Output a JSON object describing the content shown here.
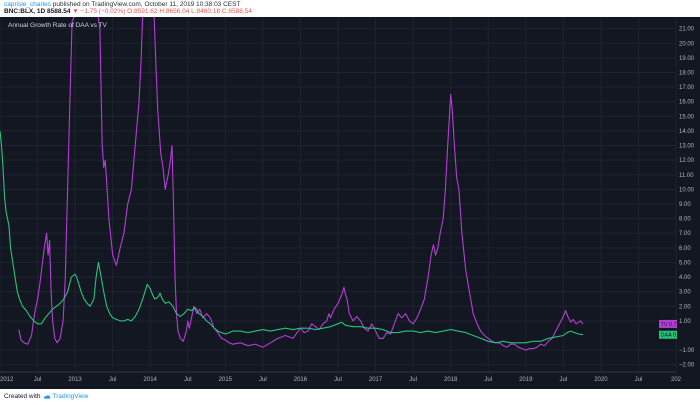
{
  "header": {
    "username": "caprisle_charles",
    "published_text": "published on TradingView.com, October 11, 2019 10:38:03 CEST",
    "symbol": "BNC:BLX, 1D",
    "price": "8588.54",
    "change": "▼ −1.75 (−0.02%)",
    "ohlc": "O:8591.62 H:8656.04 L:8460.18 C:8588.54"
  },
  "footer": {
    "created_with": "Created with",
    "brand": "TradingView"
  },
  "chart_data": {
    "type": "line",
    "title": "Annual Growth Rate of DAA vs TV",
    "x_axis": {
      "labels": [
        "2012",
        "Jul",
        "2013",
        "Jul",
        "2014",
        "Jul",
        "2015",
        "Jul",
        "2016",
        "Jul",
        "2017",
        "Jul",
        "2018",
        "Jul",
        "2019",
        "Jul",
        "2020",
        "Jul",
        "202"
      ],
      "range": [
        2012.0,
        2021.0
      ]
    },
    "y_axis": {
      "ticks": [
        "21.00",
        "20.00",
        "19.00",
        "18.00",
        "17.00",
        "16.00",
        "15.00",
        "14.00",
        "13.00",
        "12.00",
        "11.00",
        "10.00",
        "9.00",
        "8.00",
        "7.00",
        "6.00",
        "5.00",
        "4.00",
        "3.00",
        "2.00",
        "1.00",
        "−1.00",
        "−2.00"
      ],
      "range": [
        -2.5,
        21.8
      ]
    },
    "grid": true,
    "series": [
      {
        "name": "TV",
        "color": "#b53ed6",
        "last_value": "0.79",
        "points": [
          [
            2012.25,
            0.4
          ],
          [
            2012.28,
            -0.3
          ],
          [
            2012.32,
            -0.5
          ],
          [
            2012.37,
            -0.6
          ],
          [
            2012.42,
            0.0
          ],
          [
            2012.46,
            1.5
          ],
          [
            2012.5,
            2.5
          ],
          [
            2012.53,
            3.5
          ],
          [
            2012.56,
            4.8
          ],
          [
            2012.59,
            6.0
          ],
          [
            2012.62,
            7.0
          ],
          [
            2012.64,
            5.5
          ],
          [
            2012.66,
            6.5
          ],
          [
            2012.68,
            3.0
          ],
          [
            2012.7,
            1.0
          ],
          [
            2012.73,
            -0.2
          ],
          [
            2012.76,
            -0.5
          ],
          [
            2012.8,
            -0.2
          ],
          [
            2012.84,
            1.0
          ],
          [
            2012.87,
            4.0
          ],
          [
            2012.9,
            10.0
          ],
          [
            2012.93,
            16.0
          ],
          [
            2012.96,
            21.5
          ],
          [
            2013.0,
            22.0
          ],
          [
            2013.3,
            22.0
          ],
          [
            2013.33,
            21.0
          ],
          [
            2013.36,
            13.0
          ],
          [
            2013.38,
            11.5
          ],
          [
            2013.4,
            12.0
          ],
          [
            2013.42,
            10.5
          ],
          [
            2013.45,
            8.0
          ],
          [
            2013.5,
            5.5
          ],
          [
            2013.55,
            4.8
          ],
          [
            2013.6,
            6.0
          ],
          [
            2013.65,
            7.0
          ],
          [
            2013.7,
            9.0
          ],
          [
            2013.75,
            10.0
          ],
          [
            2013.8,
            13.0
          ],
          [
            2013.85,
            16.0
          ],
          [
            2013.88,
            19.0
          ],
          [
            2013.9,
            22.0
          ],
          [
            2014.05,
            22.0
          ],
          [
            2014.08,
            18.0
          ],
          [
            2014.1,
            15.5
          ],
          [
            2014.14,
            12.5
          ],
          [
            2014.17,
            11.5
          ],
          [
            2014.2,
            10.0
          ],
          [
            2014.24,
            11.0
          ],
          [
            2014.27,
            12.0
          ],
          [
            2014.29,
            13.0
          ],
          [
            2014.31,
            9.0
          ],
          [
            2014.33,
            4.0
          ],
          [
            2014.35,
            1.5
          ],
          [
            2014.37,
            0.3
          ],
          [
            2014.4,
            -0.2
          ],
          [
            2014.44,
            -0.4
          ],
          [
            2014.48,
            0.3
          ],
          [
            2014.5,
            1.0
          ],
          [
            2014.52,
            0.5
          ],
          [
            2014.55,
            1.2
          ],
          [
            2014.58,
            2.0
          ],
          [
            2014.62,
            1.5
          ],
          [
            2014.66,
            1.8
          ],
          [
            2014.7,
            1.2
          ],
          [
            2014.75,
            1.5
          ],
          [
            2014.8,
            1.2
          ],
          [
            2014.85,
            0.5
          ],
          [
            2014.9,
            0.2
          ],
          [
            2014.95,
            -0.2
          ],
          [
            2015.0,
            -0.3
          ],
          [
            2015.05,
            -0.5
          ],
          [
            2015.1,
            -0.6
          ],
          [
            2015.2,
            -0.5
          ],
          [
            2015.3,
            -0.7
          ],
          [
            2015.4,
            -0.6
          ],
          [
            2015.5,
            -0.8
          ],
          [
            2015.6,
            -0.5
          ],
          [
            2015.7,
            -0.2
          ],
          [
            2015.8,
            0.0
          ],
          [
            2015.9,
            -0.2
          ],
          [
            2016.0,
            0.5
          ],
          [
            2016.05,
            0.2
          ],
          [
            2016.1,
            0.3
          ],
          [
            2016.15,
            0.8
          ],
          [
            2016.2,
            0.6
          ],
          [
            2016.25,
            0.4
          ],
          [
            2016.3,
            0.8
          ],
          [
            2016.35,
            1.0
          ],
          [
            2016.38,
            1.5
          ],
          [
            2016.4,
            1.2
          ],
          [
            2016.45,
            1.8
          ],
          [
            2016.5,
            2.2
          ],
          [
            2016.55,
            2.8
          ],
          [
            2016.58,
            3.3
          ],
          [
            2016.6,
            2.8
          ],
          [
            2016.62,
            2.5
          ],
          [
            2016.65,
            1.5
          ],
          [
            2016.7,
            1.0
          ],
          [
            2016.75,
            1.3
          ],
          [
            2016.8,
            1.0
          ],
          [
            2016.85,
            0.5
          ],
          [
            2016.9,
            0.3
          ],
          [
            2016.95,
            0.8
          ],
          [
            2017.0,
            0.3
          ],
          [
            2017.05,
            -0.2
          ],
          [
            2017.1,
            -0.2
          ],
          [
            2017.15,
            0.2
          ],
          [
            2017.2,
            0.1
          ],
          [
            2017.25,
            0.8
          ],
          [
            2017.3,
            1.5
          ],
          [
            2017.35,
            1.2
          ],
          [
            2017.4,
            1.5
          ],
          [
            2017.45,
            1.0
          ],
          [
            2017.5,
            0.8
          ],
          [
            2017.55,
            1.2
          ],
          [
            2017.6,
            1.8
          ],
          [
            2017.65,
            2.5
          ],
          [
            2017.7,
            4.0
          ],
          [
            2017.74,
            5.5
          ],
          [
            2017.77,
            6.2
          ],
          [
            2017.8,
            5.5
          ],
          [
            2017.83,
            6.0
          ],
          [
            2017.86,
            7.0
          ],
          [
            2017.9,
            8.0
          ],
          [
            2017.93,
            10.0
          ],
          [
            2017.96,
            13.0
          ],
          [
            2018.0,
            16.5
          ],
          [
            2018.02,
            15.5
          ],
          [
            2018.05,
            13.0
          ],
          [
            2018.08,
            10.8
          ],
          [
            2018.11,
            10.0
          ],
          [
            2018.15,
            7.0
          ],
          [
            2018.2,
            4.5
          ],
          [
            2018.25,
            3.0
          ],
          [
            2018.3,
            1.5
          ],
          [
            2018.35,
            0.8
          ],
          [
            2018.4,
            0.3
          ],
          [
            2018.45,
            0.0
          ],
          [
            2018.5,
            -0.2
          ],
          [
            2018.55,
            -0.4
          ],
          [
            2018.6,
            -0.5
          ],
          [
            2018.65,
            -0.5
          ],
          [
            2018.7,
            -0.7
          ],
          [
            2018.75,
            -0.8
          ],
          [
            2018.8,
            -0.6
          ],
          [
            2018.85,
            -0.6
          ],
          [
            2018.9,
            -0.8
          ],
          [
            2018.95,
            -0.9
          ],
          [
            2019.0,
            -1.0
          ],
          [
            2019.05,
            -0.9
          ],
          [
            2019.1,
            -0.9
          ],
          [
            2019.15,
            -0.8
          ],
          [
            2019.2,
            -0.6
          ],
          [
            2019.25,
            -0.7
          ],
          [
            2019.3,
            -0.4
          ],
          [
            2019.35,
            -0.2
          ],
          [
            2019.4,
            0.3
          ],
          [
            2019.45,
            0.8
          ],
          [
            2019.5,
            1.3
          ],
          [
            2019.53,
            1.7
          ],
          [
            2019.56,
            1.3
          ],
          [
            2019.6,
            0.9
          ],
          [
            2019.63,
            1.1
          ],
          [
            2019.67,
            0.8
          ],
          [
            2019.7,
            0.9
          ],
          [
            2019.73,
            1.0
          ],
          [
            2019.76,
            0.79
          ]
        ]
      },
      {
        "name": "DAA",
        "color": "#26c47a",
        "last_value": "0.05",
        "points": [
          [
            2012.0,
            14.0
          ],
          [
            2012.02,
            13.0
          ],
          [
            2012.04,
            11.5
          ],
          [
            2012.06,
            9.5
          ],
          [
            2012.08,
            8.5
          ],
          [
            2012.1,
            8.0
          ],
          [
            2012.12,
            7.5
          ],
          [
            2012.14,
            6.0
          ],
          [
            2012.17,
            5.0
          ],
          [
            2012.2,
            4.0
          ],
          [
            2012.23,
            3.0
          ],
          [
            2012.26,
            2.5
          ],
          [
            2012.3,
            2.0
          ],
          [
            2012.35,
            1.7
          ],
          [
            2012.4,
            1.3
          ],
          [
            2012.45,
            1.0
          ],
          [
            2012.5,
            0.8
          ],
          [
            2012.55,
            0.8
          ],
          [
            2012.6,
            1.2
          ],
          [
            2012.65,
            1.5
          ],
          [
            2012.7,
            1.8
          ],
          [
            2012.75,
            2.0
          ],
          [
            2012.8,
            2.2
          ],
          [
            2012.85,
            2.5
          ],
          [
            2012.9,
            3.0
          ],
          [
            2012.95,
            4.0
          ],
          [
            2013.0,
            4.2
          ],
          [
            2013.02,
            4.0
          ],
          [
            2013.05,
            3.5
          ],
          [
            2013.08,
            3.0
          ],
          [
            2013.12,
            2.5
          ],
          [
            2013.16,
            2.2
          ],
          [
            2013.2,
            2.0
          ],
          [
            2013.25,
            2.5
          ],
          [
            2013.28,
            4.0
          ],
          [
            2013.31,
            5.0
          ],
          [
            2013.34,
            4.2
          ],
          [
            2013.38,
            3.0
          ],
          [
            2013.42,
            2.0
          ],
          [
            2013.46,
            1.5
          ],
          [
            2013.5,
            1.2
          ],
          [
            2013.55,
            1.1
          ],
          [
            2013.6,
            1.0
          ],
          [
            2013.65,
            1.0
          ],
          [
            2013.7,
            1.1
          ],
          [
            2013.75,
            1.0
          ],
          [
            2013.8,
            1.3
          ],
          [
            2013.85,
            1.8
          ],
          [
            2013.9,
            2.5
          ],
          [
            2013.93,
            3.0
          ],
          [
            2013.96,
            3.5
          ],
          [
            2014.0,
            3.2
          ],
          [
            2014.03,
            2.8
          ],
          [
            2014.06,
            2.5
          ],
          [
            2014.1,
            2.6
          ],
          [
            2014.13,
            2.9
          ],
          [
            2014.16,
            2.5
          ],
          [
            2014.2,
            2.2
          ],
          [
            2014.25,
            2.3
          ],
          [
            2014.3,
            2.0
          ],
          [
            2014.35,
            1.5
          ],
          [
            2014.4,
            1.3
          ],
          [
            2014.45,
            1.5
          ],
          [
            2014.5,
            1.8
          ],
          [
            2014.55,
            1.7
          ],
          [
            2014.6,
            1.9
          ],
          [
            2014.65,
            1.5
          ],
          [
            2014.7,
            1.3
          ],
          [
            2014.75,
            1.0
          ],
          [
            2014.8,
            0.8
          ],
          [
            2014.85,
            0.5
          ],
          [
            2014.9,
            0.3
          ],
          [
            2014.95,
            0.2
          ],
          [
            2015.0,
            0.1
          ],
          [
            2015.05,
            0.2
          ],
          [
            2015.1,
            0.3
          ],
          [
            2015.2,
            0.3
          ],
          [
            2015.3,
            0.2
          ],
          [
            2015.4,
            0.3
          ],
          [
            2015.5,
            0.4
          ],
          [
            2015.6,
            0.3
          ],
          [
            2015.7,
            0.4
          ],
          [
            2015.8,
            0.5
          ],
          [
            2015.9,
            0.4
          ],
          [
            2016.0,
            0.5
          ],
          [
            2016.1,
            0.5
          ],
          [
            2016.2,
            0.4
          ],
          [
            2016.3,
            0.5
          ],
          [
            2016.4,
            0.6
          ],
          [
            2016.5,
            0.8
          ],
          [
            2016.55,
            0.9
          ],
          [
            2016.6,
            0.7
          ],
          [
            2016.7,
            0.6
          ],
          [
            2016.8,
            0.6
          ],
          [
            2016.9,
            0.5
          ],
          [
            2017.0,
            0.5
          ],
          [
            2017.1,
            0.4
          ],
          [
            2017.2,
            0.2
          ],
          [
            2017.3,
            0.2
          ],
          [
            2017.4,
            0.3
          ],
          [
            2017.5,
            0.3
          ],
          [
            2017.6,
            0.2
          ],
          [
            2017.7,
            0.3
          ],
          [
            2017.8,
            0.2
          ],
          [
            2017.9,
            0.3
          ],
          [
            2018.0,
            0.4
          ],
          [
            2018.1,
            0.3
          ],
          [
            2018.2,
            0.2
          ],
          [
            2018.3,
            0.0
          ],
          [
            2018.4,
            -0.2
          ],
          [
            2018.5,
            -0.4
          ],
          [
            2018.6,
            -0.5
          ],
          [
            2018.7,
            -0.4
          ],
          [
            2018.8,
            -0.5
          ],
          [
            2018.9,
            -0.5
          ],
          [
            2019.0,
            -0.5
          ],
          [
            2019.1,
            -0.4
          ],
          [
            2019.2,
            -0.4
          ],
          [
            2019.3,
            -0.2
          ],
          [
            2019.4,
            -0.1
          ],
          [
            2019.5,
            0.0
          ],
          [
            2019.55,
            0.2
          ],
          [
            2019.6,
            0.3
          ],
          [
            2019.65,
            0.2
          ],
          [
            2019.7,
            0.1
          ],
          [
            2019.76,
            0.05
          ]
        ]
      }
    ]
  }
}
